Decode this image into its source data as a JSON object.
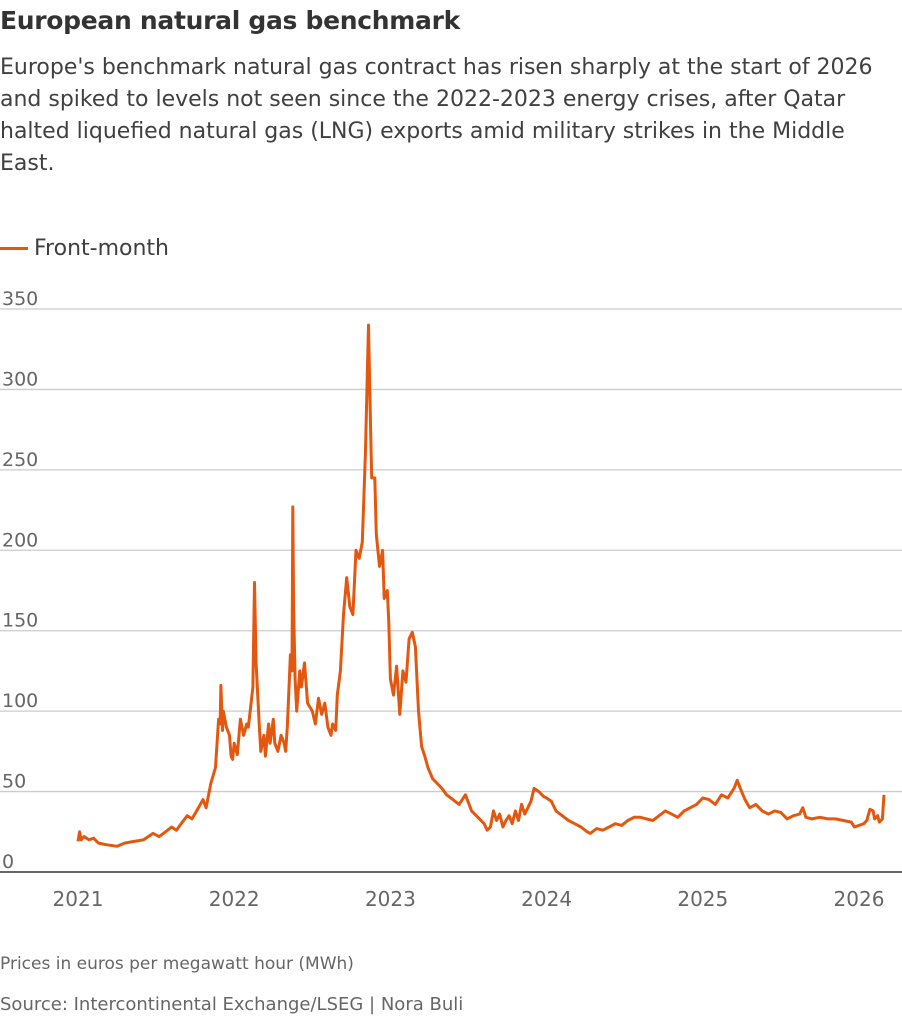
{
  "title": "European natural gas benchmark",
  "subtitle": "Europe's benchmark natural gas contract has risen sharply at the start of 2026 and spiked to levels not seen since the 2022-2023 energy crises, after Qatar halted liquefied natural gas (LNG) exports amid military strikes in the Middle East.",
  "note": "Prices in euros per megawatt hour (MWh)",
  "source": "Source: Intercontinental Exchange/LSEG | Nora Buli",
  "chart_data": {
    "type": "line",
    "xlabel": "",
    "ylabel": "",
    "ylim": [
      0,
      350
    ],
    "xlim": [
      2021,
      2026.2
    ],
    "yticks": [
      "0",
      "50",
      "100",
      "150",
      "200",
      "250",
      "300",
      "350"
    ],
    "xticks": [
      "2021",
      "2022",
      "2023",
      "2024",
      "2025",
      "2026"
    ],
    "grid": true,
    "legend": "top-left",
    "color": "#e4570f",
    "series": [
      {
        "name": "Front-month",
        "points": [
          [
            2021.0,
            19
          ],
          [
            2021.01,
            25
          ],
          [
            2021.02,
            20
          ],
          [
            2021.04,
            22
          ],
          [
            2021.07,
            20
          ],
          [
            2021.1,
            21
          ],
          [
            2021.13,
            18
          ],
          [
            2021.18,
            17
          ],
          [
            2021.25,
            16
          ],
          [
            2021.3,
            18
          ],
          [
            2021.36,
            19
          ],
          [
            2021.42,
            20
          ],
          [
            2021.48,
            24
          ],
          [
            2021.52,
            22
          ],
          [
            2021.56,
            25
          ],
          [
            2021.6,
            28
          ],
          [
            2021.63,
            26
          ],
          [
            2021.66,
            30
          ],
          [
            2021.7,
            35
          ],
          [
            2021.73,
            33
          ],
          [
            2021.76,
            38
          ],
          [
            2021.8,
            45
          ],
          [
            2021.82,
            40
          ],
          [
            2021.85,
            55
          ],
          [
            2021.88,
            65
          ],
          [
            2021.9,
            95
          ],
          [
            2021.91,
            92
          ],
          [
            2021.915,
            116
          ],
          [
            2021.925,
            88
          ],
          [
            2021.93,
            100
          ],
          [
            2021.95,
            90
          ],
          [
            2021.97,
            85
          ],
          [
            2021.98,
            72
          ],
          [
            2021.99,
            70
          ],
          [
            2022.0,
            80
          ],
          [
            2022.02,
            73
          ],
          [
            2022.04,
            95
          ],
          [
            2022.06,
            85
          ],
          [
            2022.08,
            92
          ],
          [
            2022.09,
            90
          ],
          [
            2022.1,
            98
          ],
          [
            2022.12,
            115
          ],
          [
            2022.13,
            180
          ],
          [
            2022.14,
            130
          ],
          [
            2022.16,
            92
          ],
          [
            2022.17,
            75
          ],
          [
            2022.19,
            85
          ],
          [
            2022.2,
            72
          ],
          [
            2022.22,
            92
          ],
          [
            2022.23,
            80
          ],
          [
            2022.25,
            95
          ],
          [
            2022.26,
            80
          ],
          [
            2022.28,
            75
          ],
          [
            2022.3,
            85
          ],
          [
            2022.32,
            80
          ],
          [
            2022.33,
            75
          ],
          [
            2022.34,
            90
          ],
          [
            2022.36,
            135
          ],
          [
            2022.37,
            125
          ],
          [
            2022.375,
            227
          ],
          [
            2022.38,
            165
          ],
          [
            2022.39,
            120
          ],
          [
            2022.4,
            100
          ],
          [
            2022.42,
            125
          ],
          [
            2022.43,
            115
          ],
          [
            2022.45,
            130
          ],
          [
            2022.47,
            105
          ],
          [
            2022.5,
            100
          ],
          [
            2022.52,
            92
          ],
          [
            2022.54,
            108
          ],
          [
            2022.56,
            98
          ],
          [
            2022.58,
            105
          ],
          [
            2022.6,
            90
          ],
          [
            2022.62,
            85
          ],
          [
            2022.63,
            92
          ],
          [
            2022.65,
            88
          ],
          [
            2022.66,
            110
          ],
          [
            2022.68,
            125
          ],
          [
            2022.7,
            160
          ],
          [
            2022.72,
            183
          ],
          [
            2022.74,
            165
          ],
          [
            2022.76,
            160
          ],
          [
            2022.78,
            200
          ],
          [
            2022.8,
            195
          ],
          [
            2022.82,
            205
          ],
          [
            2022.84,
            260
          ],
          [
            2022.86,
            340
          ],
          [
            2022.87,
            290
          ],
          [
            2022.88,
            245
          ],
          [
            2022.9,
            245
          ],
          [
            2022.91,
            210
          ],
          [
            2022.93,
            190
          ],
          [
            2022.95,
            200
          ],
          [
            2022.96,
            170
          ],
          [
            2022.98,
            175
          ],
          [
            2022.99,
            155
          ],
          [
            2023.0,
            120
          ],
          [
            2023.02,
            110
          ],
          [
            2023.04,
            128
          ],
          [
            2023.06,
            98
          ],
          [
            2023.08,
            125
          ],
          [
            2023.1,
            118
          ],
          [
            2023.12,
            145
          ],
          [
            2023.14,
            149
          ],
          [
            2023.16,
            140
          ],
          [
            2023.18,
            100
          ],
          [
            2023.2,
            78
          ],
          [
            2023.22,
            72
          ],
          [
            2023.24,
            65
          ],
          [
            2023.27,
            58
          ],
          [
            2023.3,
            55
          ],
          [
            2023.33,
            52
          ],
          [
            2023.36,
            48
          ],
          [
            2023.4,
            45
          ],
          [
            2023.44,
            42
          ],
          [
            2023.48,
            48
          ],
          [
            2023.52,
            38
          ],
          [
            2023.55,
            35
          ],
          [
            2023.6,
            30
          ],
          [
            2023.62,
            26
          ],
          [
            2023.64,
            28
          ],
          [
            2023.66,
            38
          ],
          [
            2023.68,
            32
          ],
          [
            2023.7,
            36
          ],
          [
            2023.72,
            28
          ],
          [
            2023.74,
            32
          ],
          [
            2023.76,
            35
          ],
          [
            2023.78,
            30
          ],
          [
            2023.8,
            38
          ],
          [
            2023.82,
            32
          ],
          [
            2023.84,
            42
          ],
          [
            2023.86,
            36
          ],
          [
            2023.88,
            40
          ],
          [
            2023.9,
            44
          ],
          [
            2023.92,
            52
          ],
          [
            2023.95,
            50
          ],
          [
            2023.98,
            47
          ],
          [
            2024.0,
            46
          ],
          [
            2024.03,
            44
          ],
          [
            2024.06,
            38
          ],
          [
            2024.1,
            35
          ],
          [
            2024.14,
            32
          ],
          [
            2024.18,
            30
          ],
          [
            2024.22,
            28
          ],
          [
            2024.26,
            25
          ],
          [
            2024.28,
            24
          ],
          [
            2024.32,
            27
          ],
          [
            2024.36,
            26
          ],
          [
            2024.4,
            28
          ],
          [
            2024.44,
            30
          ],
          [
            2024.48,
            29
          ],
          [
            2024.52,
            32
          ],
          [
            2024.56,
            34
          ],
          [
            2024.6,
            34
          ],
          [
            2024.64,
            33
          ],
          [
            2024.68,
            32
          ],
          [
            2024.72,
            35
          ],
          [
            2024.76,
            38
          ],
          [
            2024.8,
            36
          ],
          [
            2024.84,
            34
          ],
          [
            2024.88,
            38
          ],
          [
            2024.92,
            40
          ],
          [
            2024.96,
            42
          ],
          [
            2025.0,
            46
          ],
          [
            2025.04,
            45
          ],
          [
            2025.08,
            42
          ],
          [
            2025.12,
            48
          ],
          [
            2025.16,
            46
          ],
          [
            2025.2,
            52
          ],
          [
            2025.22,
            57
          ],
          [
            2025.24,
            52
          ],
          [
            2025.27,
            45
          ],
          [
            2025.3,
            40
          ],
          [
            2025.34,
            42
          ],
          [
            2025.38,
            38
          ],
          [
            2025.42,
            36
          ],
          [
            2025.46,
            38
          ],
          [
            2025.5,
            37
          ],
          [
            2025.54,
            33
          ],
          [
            2025.58,
            35
          ],
          [
            2025.62,
            36
          ],
          [
            2025.64,
            40
          ],
          [
            2025.66,
            34
          ],
          [
            2025.7,
            33
          ],
          [
            2025.75,
            34
          ],
          [
            2025.8,
            33
          ],
          [
            2025.85,
            33
          ],
          [
            2025.9,
            32
          ],
          [
            2025.95,
            31
          ],
          [
            2025.97,
            28
          ],
          [
            2026.0,
            29
          ],
          [
            2026.03,
            30
          ],
          [
            2026.05,
            32
          ],
          [
            2026.07,
            39
          ],
          [
            2026.09,
            38
          ],
          [
            2026.1,
            33
          ],
          [
            2026.12,
            35
          ],
          [
            2026.13,
            31
          ],
          [
            2026.15,
            33
          ],
          [
            2026.16,
            48
          ]
        ]
      }
    ]
  }
}
